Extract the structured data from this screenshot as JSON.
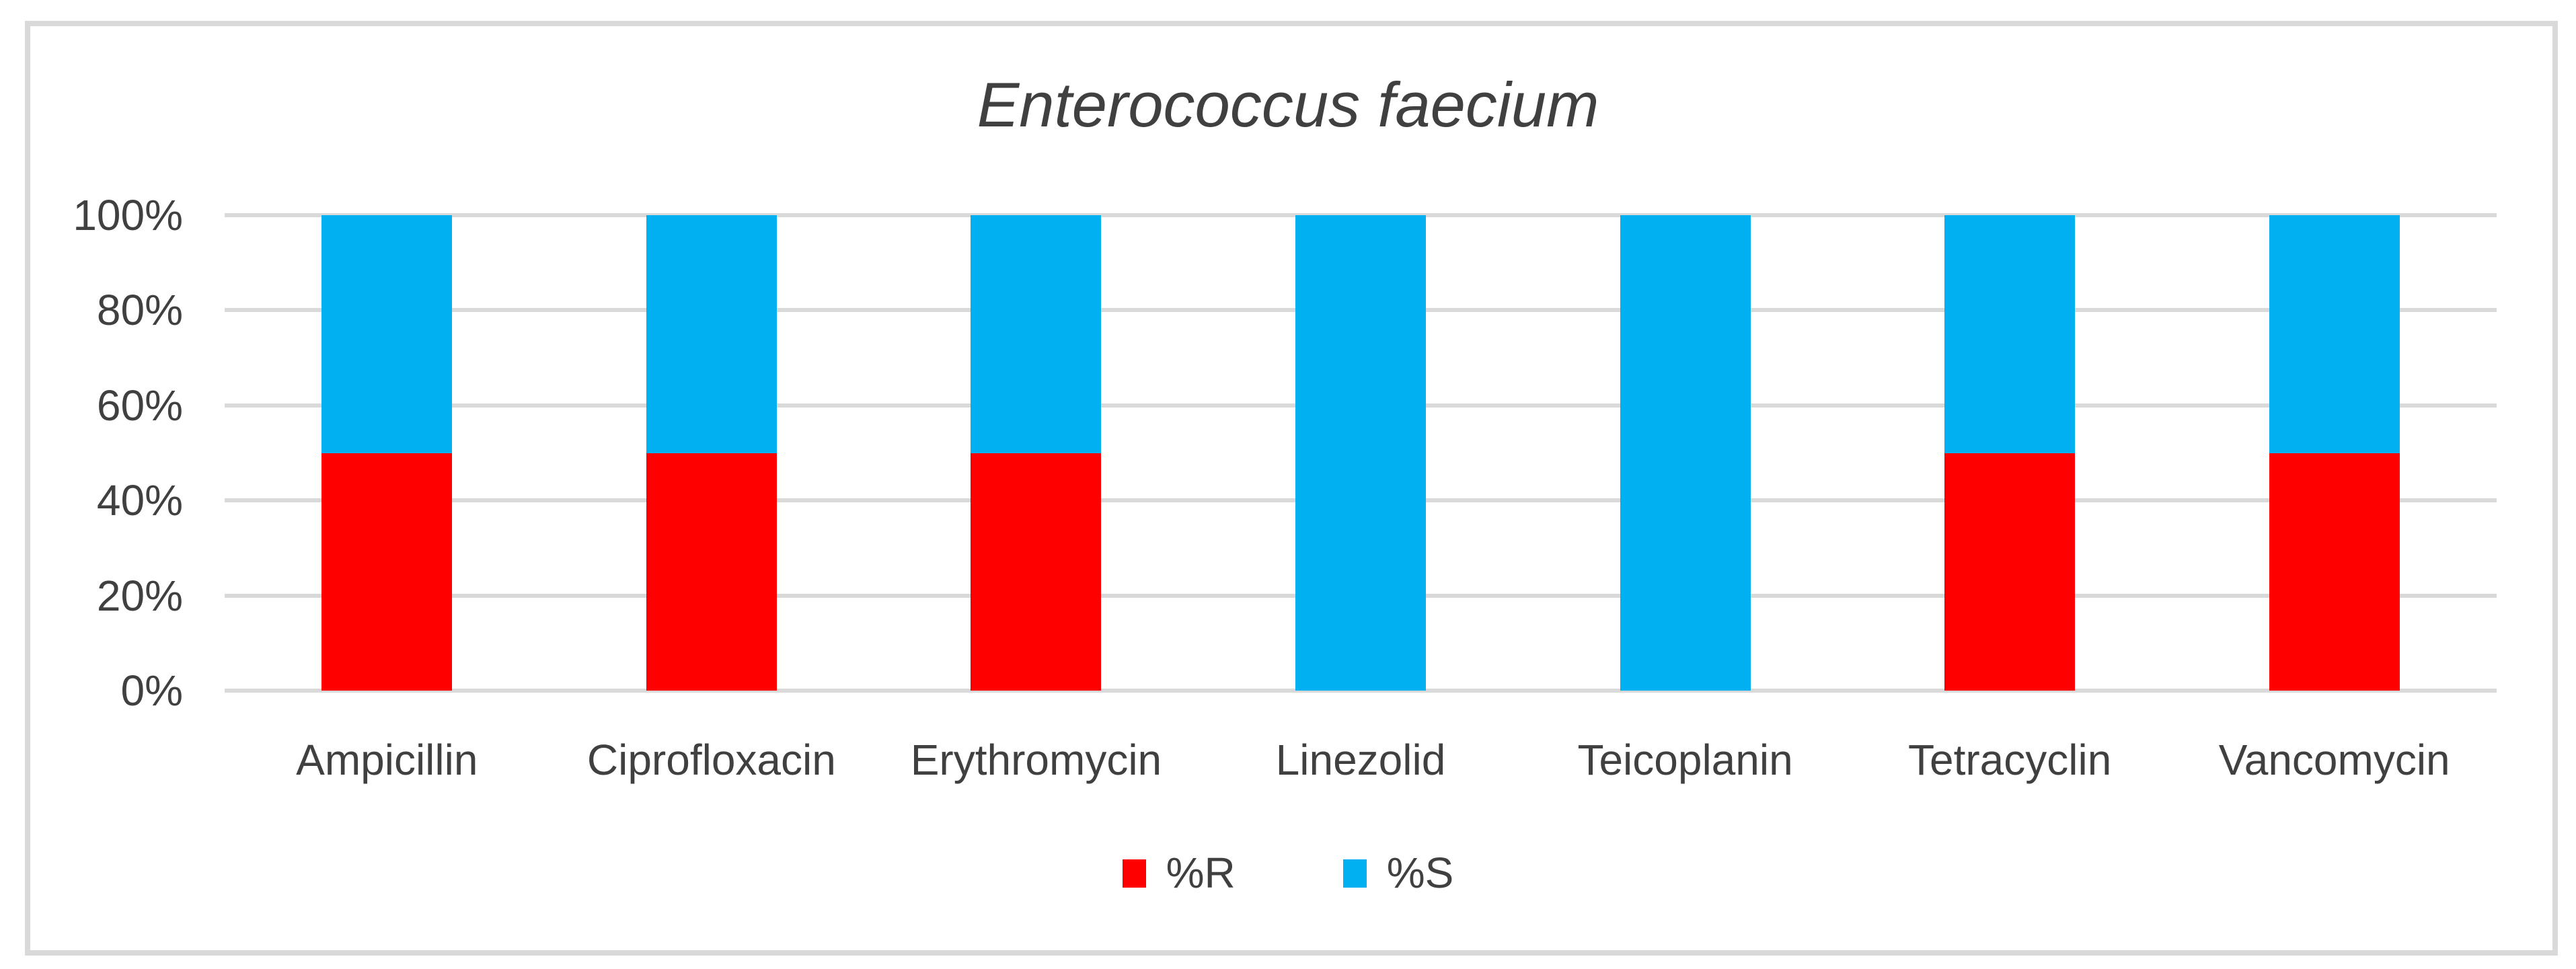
{
  "title": "Enterococcus faecium",
  "colors": {
    "resistant": "#FF0000",
    "susceptible": "#00B0F0",
    "gridline": "#D9D9D9",
    "frame_border": "#D9D9D9",
    "text": "#404040",
    "background": "#FFFFFF"
  },
  "chart_data": {
    "type": "bar",
    "stacked": true,
    "title": "Enterococcus faecium",
    "xlabel": "",
    "ylabel": "",
    "categories": [
      "Ampicillin",
      "Ciprofloxacin",
      "Erythromycin",
      "Linezolid",
      "Teicoplanin",
      "Tetracyclin",
      "Vancomycin"
    ],
    "series": [
      {
        "name": "%R",
        "color": "#FF0000",
        "values": [
          50,
          50,
          50,
          0,
          0,
          50,
          50
        ]
      },
      {
        "name": "%S",
        "color": "#00B0F0",
        "values": [
          50,
          50,
          50,
          100,
          100,
          50,
          50
        ]
      }
    ],
    "ylim": [
      0,
      100
    ],
    "yticks": [
      "0%",
      "20%",
      "40%",
      "60%",
      "80%",
      "100%"
    ],
    "grid": true,
    "gridline_interval_pct": 20,
    "legend_position": "bottom"
  }
}
